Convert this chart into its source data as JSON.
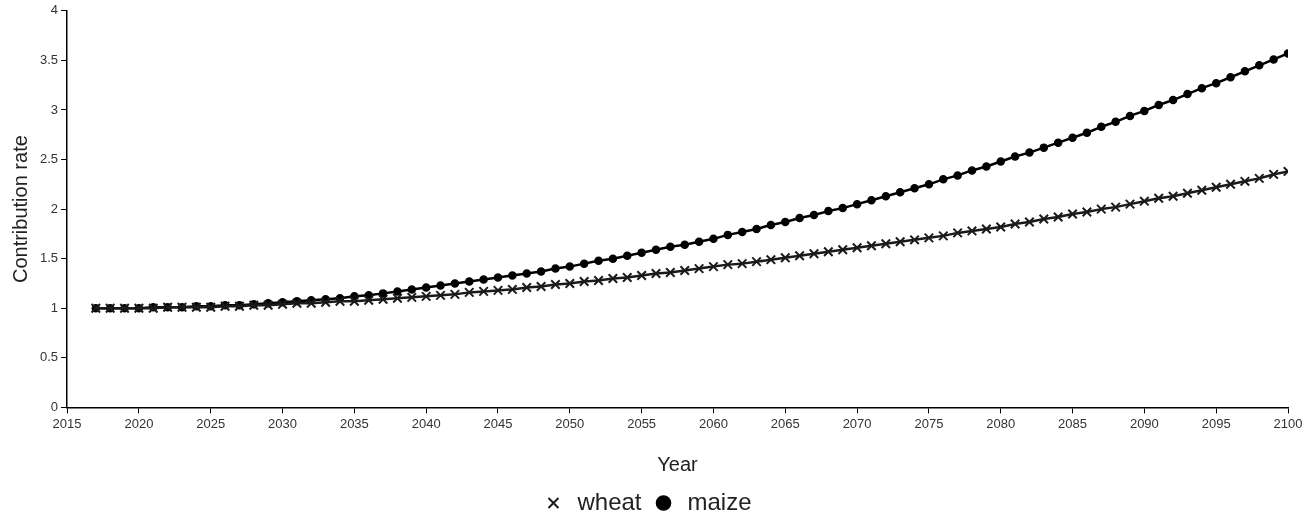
{
  "chart_data": {
    "type": "line",
    "xlabel": "Year",
    "ylabel": "Contribution rate",
    "xlim": [
      2015,
      2100
    ],
    "xticks": [
      2015,
      2020,
      2025,
      2030,
      2035,
      2040,
      2045,
      2050,
      2055,
      2060,
      2065,
      2070,
      2075,
      2080,
      2085,
      2090,
      2095,
      2100
    ],
    "ylim": [
      0,
      4
    ],
    "yticks": [
      0,
      0.5,
      1,
      1.5,
      2,
      2.5,
      3,
      3.5,
      4
    ],
    "grid": false,
    "legend": "bottom",
    "line_style": "solid",
    "x": [
      2017,
      2018,
      2019,
      2020,
      2021,
      2022,
      2023,
      2024,
      2025,
      2026,
      2027,
      2028,
      2029,
      2030,
      2031,
      2032,
      2033,
      2034,
      2035,
      2036,
      2037,
      2038,
      2039,
      2040,
      2041,
      2042,
      2043,
      2044,
      2045,
      2046,
      2047,
      2048,
      2049,
      2050,
      2051,
      2052,
      2053,
      2054,
      2055,
      2056,
      2057,
      2058,
      2059,
      2060,
      2061,
      2062,
      2063,
      2064,
      2065,
      2066,
      2067,
      2068,
      2069,
      2070,
      2071,
      2072,
      2073,
      2074,
      2075,
      2076,
      2077,
      2078,
      2079,
      2080,
      2081,
      2082,
      2083,
      2084,
      2085,
      2086,
      2087,
      2088,
      2089,
      2090,
      2091,
      2092,
      2093,
      2094,
      2095,
      2096,
      2097,
      2098,
      2099,
      2100
    ],
    "series": [
      {
        "name": "wheat",
        "color": "#1a1a1a",
        "marker": "cross",
        "values": [
          1.0,
          1.0,
          1.0,
          1.0,
          1.0,
          1.01,
          1.01,
          1.01,
          1.01,
          1.02,
          1.02,
          1.03,
          1.03,
          1.04,
          1.05,
          1.05,
          1.06,
          1.07,
          1.07,
          1.08,
          1.09,
          1.1,
          1.11,
          1.12,
          1.13,
          1.14,
          1.16,
          1.17,
          1.18,
          1.19,
          1.21,
          1.22,
          1.24,
          1.25,
          1.27,
          1.28,
          1.3,
          1.31,
          1.33,
          1.35,
          1.36,
          1.38,
          1.4,
          1.42,
          1.44,
          1.45,
          1.47,
          1.49,
          1.51,
          1.53,
          1.55,
          1.57,
          1.59,
          1.61,
          1.63,
          1.65,
          1.67,
          1.69,
          1.71,
          1.73,
          1.76,
          1.78,
          1.8,
          1.82,
          1.85,
          1.87,
          1.9,
          1.92,
          1.95,
          1.97,
          2.0,
          2.02,
          2.05,
          2.08,
          2.11,
          2.13,
          2.16,
          2.19,
          2.22,
          2.25,
          2.28,
          2.31,
          2.35,
          2.38
        ]
      },
      {
        "name": "maize",
        "color": "#000000",
        "marker": "circle",
        "values": [
          1.0,
          1.0,
          1.0,
          1.0,
          1.01,
          1.01,
          1.01,
          1.02,
          1.02,
          1.03,
          1.03,
          1.04,
          1.05,
          1.06,
          1.07,
          1.08,
          1.09,
          1.1,
          1.12,
          1.13,
          1.15,
          1.17,
          1.19,
          1.21,
          1.23,
          1.25,
          1.27,
          1.29,
          1.31,
          1.33,
          1.35,
          1.37,
          1.4,
          1.42,
          1.45,
          1.48,
          1.5,
          1.53,
          1.56,
          1.59,
          1.62,
          1.64,
          1.67,
          1.7,
          1.74,
          1.77,
          1.8,
          1.84,
          1.87,
          1.91,
          1.94,
          1.98,
          2.01,
          2.05,
          2.09,
          2.13,
          2.17,
          2.21,
          2.25,
          2.3,
          2.34,
          2.39,
          2.43,
          2.48,
          2.53,
          2.57,
          2.62,
          2.67,
          2.72,
          2.77,
          2.83,
          2.88,
          2.94,
          2.99,
          3.05,
          3.1,
          3.16,
          3.22,
          3.27,
          3.33,
          3.39,
          3.45,
          3.51,
          3.57
        ]
      }
    ]
  }
}
